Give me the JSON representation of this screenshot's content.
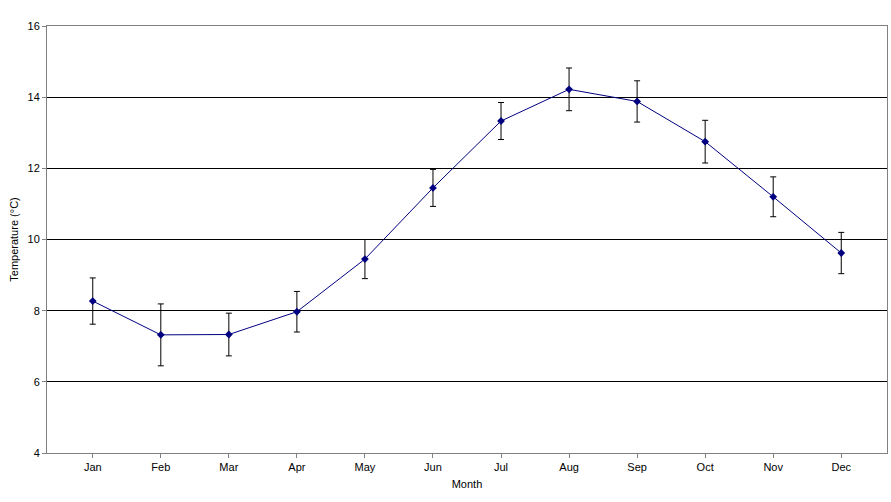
{
  "chart_data": {
    "type": "line",
    "xlabel": "Month",
    "ylabel": "Temperature (°C)",
    "categories": [
      "Jan",
      "Feb",
      "Mar",
      "Apr",
      "May",
      "Jun",
      "Jul",
      "Aug",
      "Sep",
      "Oct",
      "Nov",
      "Dec"
    ],
    "values": [
      8.27,
      7.32,
      7.33,
      7.97,
      9.45,
      11.45,
      13.33,
      14.22,
      13.88,
      12.75,
      11.2,
      9.62
    ],
    "errors": [
      0.65,
      0.87,
      0.6,
      0.57,
      0.55,
      0.52,
      0.52,
      0.6,
      0.58,
      0.6,
      0.56,
      0.58
    ],
    "color": "#000080",
    "marker": "diamond",
    "ylim": [
      4,
      16
    ],
    "yticks": [
      4,
      6,
      8,
      10,
      12,
      14,
      16
    ],
    "grid": true
  }
}
